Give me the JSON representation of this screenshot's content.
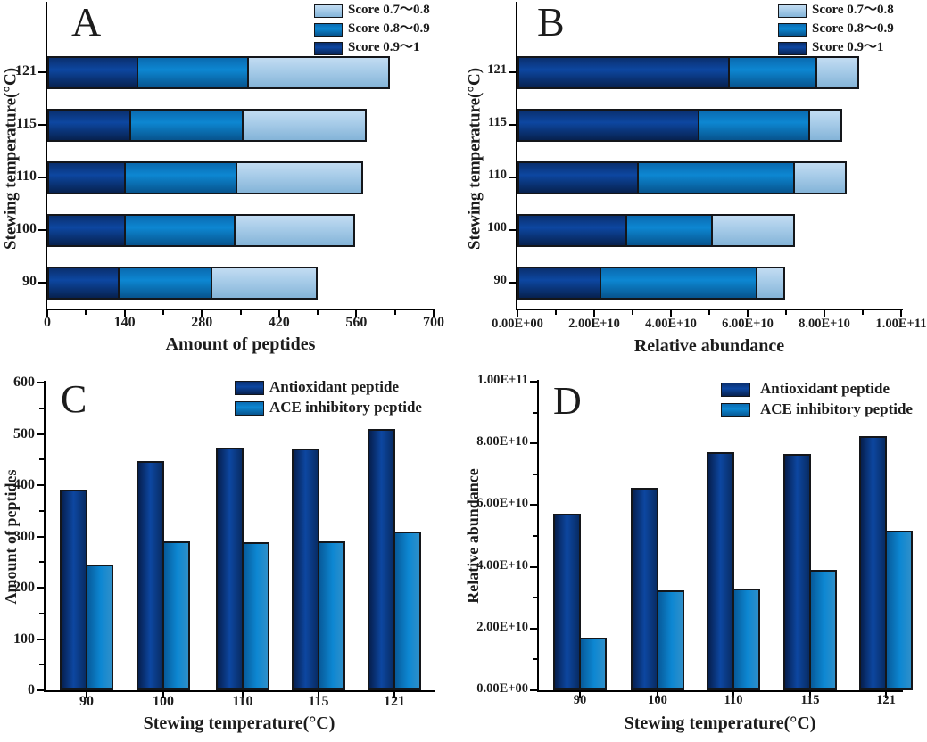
{
  "figure": {
    "background": "#ffffff"
  },
  "palette": {
    "score_07_08": "#a6cbe8",
    "score_08_09": "#0c82cc",
    "score_09_1": "#0c4196",
    "antioxidant_peptide": "#0c4196",
    "ace_inhibitory_peptide": "#0c82cc",
    "axis": "#000000",
    "text": "#1c1c1c"
  },
  "chart_data": [
    {
      "id": "A",
      "type": "bar",
      "orientation": "horizontal-stacked",
      "panel_label": "A",
      "categories": [
        "90",
        "100",
        "110",
        "115",
        "121"
      ],
      "series": [
        {
          "name": "Score 0.9～1",
          "color_key": "dark",
          "values": [
            127,
            137,
            138,
            147,
            160
          ]
        },
        {
          "name": "Score 0.8～0.9",
          "color_key": "mid",
          "values": [
            170,
            201,
            204,
            206,
            202
          ]
        },
        {
          "name": "Score 0.7～0.8",
          "color_key": "light",
          "values": [
            193,
            220,
            230,
            225,
            259
          ]
        }
      ],
      "totals": [
        490,
        558,
        572,
        578,
        621
      ],
      "xlabel": "Amount of peptides",
      "ylabel": "Stewing temperature(°C)",
      "xlim": [
        0,
        700
      ],
      "xticks": [
        {
          "v": 0,
          "label": "0"
        },
        {
          "v": 140,
          "label": "140"
        },
        {
          "v": 280,
          "label": "280"
        },
        {
          "v": 420,
          "label": "420"
        },
        {
          "v": 560,
          "label": "560"
        },
        {
          "v": 700,
          "label": "700"
        }
      ],
      "minor_step": 70,
      "legend": [
        {
          "label": "Score 0.7～0.8",
          "color_key": "light"
        },
        {
          "label": "Score 0.8～0.9",
          "color_key": "mid"
        },
        {
          "label": "Score 0.9～1",
          "color_key": "dark"
        }
      ],
      "grid": false,
      "legend_position": "top-right"
    },
    {
      "id": "B",
      "type": "bar",
      "orientation": "horizontal-stacked",
      "panel_label": "B",
      "categories": [
        "90",
        "100",
        "110",
        "115",
        "121"
      ],
      "series": [
        {
          "name": "Score 0.9～1",
          "color_key": "dark",
          "values": [
            21200000000.0,
            28100000000.0,
            31100000000.0,
            47100000000.0,
            54900000000.0
          ]
        },
        {
          "name": "Score 0.8～0.9",
          "color_key": "mid",
          "values": [
            41200000000.0,
            22500000000.0,
            41100000000.0,
            29100000000.0,
            23100000000.0
          ]
        },
        {
          "name": "Score 0.7～0.8",
          "color_key": "light",
          "values": [
            7400000000.0,
            21700000000.0,
            13700000000.0,
            8500000000.0,
            11000000000.0
          ]
        }
      ],
      "totals": [
        69800000000.0,
        72300000000.0,
        85900000000.0,
        84700000000.0,
        89000000000.0
      ],
      "xlabel": "Relative abundance",
      "ylabel": "Stewing temperature(°C)",
      "xlim": [
        0,
        100000000000.0
      ],
      "xticks": [
        {
          "v": 0,
          "label": "0.00E+00"
        },
        {
          "v": 20000000000.0,
          "label": "2.00E+10"
        },
        {
          "v": 40000000000.0,
          "label": "4.00E+10"
        },
        {
          "v": 60000000000.0,
          "label": "6.00E+10"
        },
        {
          "v": 80000000000.0,
          "label": "8.00E+10"
        },
        {
          "v": 100000000000.0,
          "label": "1.00E+11"
        }
      ],
      "minor_step": 10000000000.0,
      "legend": [
        {
          "label": "Score 0.7～0.8",
          "color_key": "light"
        },
        {
          "label": "Score 0.8～0.9",
          "color_key": "mid"
        },
        {
          "label": "Score 0.9～1",
          "color_key": "dark"
        }
      ],
      "grid": false,
      "legend_position": "top-right"
    },
    {
      "id": "C",
      "type": "bar",
      "orientation": "vertical-grouped",
      "panel_label": "C",
      "categories": [
        "90",
        "100",
        "110",
        "115",
        "121"
      ],
      "series": [
        {
          "name": "Antioxidant peptide",
          "color_key": "dark",
          "values": [
            391,
            447,
            473,
            471,
            509
          ]
        },
        {
          "name": "ACE inhibitory peptide",
          "color_key": "mid",
          "values": [
            245,
            291,
            289,
            291,
            310
          ]
        }
      ],
      "xlabel": "Stewing temperature(°C)",
      "ylabel": "Amount of peptides",
      "ylim": [
        0,
        600
      ],
      "yticks": [
        {
          "v": 0,
          "label": "0"
        },
        {
          "v": 100,
          "label": "100"
        },
        {
          "v": 200,
          "label": "200"
        },
        {
          "v": 300,
          "label": "300"
        },
        {
          "v": 400,
          "label": "400"
        },
        {
          "v": 500,
          "label": "500"
        },
        {
          "v": 600,
          "label": "600"
        }
      ],
      "minor_step": 50,
      "legend": [
        {
          "label": "Antioxidant peptide",
          "color_key": "dark"
        },
        {
          "label": "ACE inhibitory peptide",
          "color_key": "mid"
        }
      ],
      "grid": false,
      "legend_position": "top-right"
    },
    {
      "id": "D",
      "type": "bar",
      "orientation": "vertical-grouped",
      "panel_label": "D",
      "categories": [
        "90",
        "100",
        "110",
        "115",
        "121"
      ],
      "series": [
        {
          "name": "Antioxidant peptide",
          "color_key": "dark",
          "values": [
            57200000000.0,
            65700000000.0,
            77200000000.0,
            76600000000.0,
            82400000000.0
          ]
        },
        {
          "name": "ACE inhibitory peptide",
          "color_key": "mid",
          "values": [
            17000000000.0,
            32500000000.0,
            32900000000.0,
            39100000000.0,
            51600000000.0
          ]
        }
      ],
      "xlabel": "Stewing temperature(°C)",
      "ylabel": "Relative abundance",
      "ylim": [
        0,
        100000000000.0
      ],
      "yticks": [
        {
          "v": 0,
          "label": "0.00E+00"
        },
        {
          "v": 20000000000.0,
          "label": "2.00E+10"
        },
        {
          "v": 40000000000.0,
          "label": "4.00E+10"
        },
        {
          "v": 60000000000.0,
          "label": "6.00E+10"
        },
        {
          "v": 80000000000.0,
          "label": "8.00E+10"
        },
        {
          "v": 100000000000.0,
          "label": "1.00E+11"
        }
      ],
      "minor_step": 10000000000.0,
      "legend": [
        {
          "label": "Antioxidant peptide",
          "color_key": "dark"
        },
        {
          "label": "ACE inhibitory peptide",
          "color_key": "mid"
        }
      ],
      "grid": false,
      "legend_position": "top-right"
    }
  ]
}
